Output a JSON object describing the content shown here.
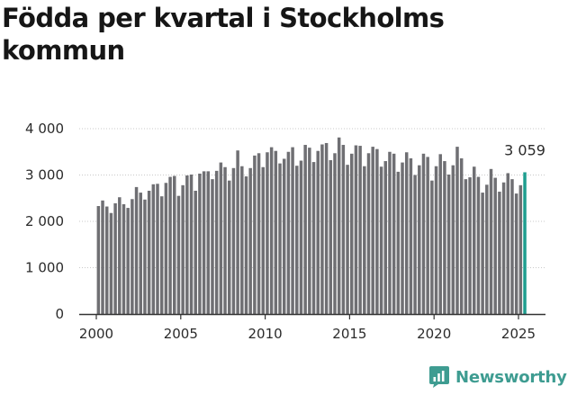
{
  "chart_data": {
    "type": "bar",
    "title": "Födda per kvartal i Stockholms kommun",
    "subtitle": "",
    "xlabel": "",
    "ylabel": "",
    "ylim": [
      0,
      4000
    ],
    "yticks": [
      0,
      1000,
      2000,
      3000,
      4000
    ],
    "ytick_labels": [
      "0",
      "1 000",
      "2 000",
      "3 000",
      "4 000"
    ],
    "xticks": [
      2000,
      2005,
      2010,
      2015,
      2020,
      2025
    ],
    "xtick_labels": [
      "2000",
      "2005",
      "2010",
      "2015",
      "2020",
      "2025"
    ],
    "grid": "horizontal",
    "legend": "none",
    "series": [
      {
        "start_year": 2000,
        "periods_per_year": 4,
        "values": [
          2330,
          2450,
          2320,
          2180,
          2390,
          2520,
          2370,
          2290,
          2480,
          2740,
          2620,
          2470,
          2660,
          2800,
          2810,
          2540,
          2830,
          2960,
          2980,
          2550,
          2780,
          2990,
          3010,
          2660,
          3030,
          3080,
          3080,
          2910,
          3090,
          3270,
          3170,
          2880,
          3150,
          3530,
          3190,
          2970,
          3150,
          3420,
          3470,
          3170,
          3490,
          3600,
          3520,
          3250,
          3350,
          3500,
          3600,
          3200,
          3310,
          3650,
          3590,
          3280,
          3520,
          3660,
          3690,
          3320,
          3470,
          3810,
          3650,
          3220,
          3460,
          3640,
          3630,
          3190,
          3470,
          3610,
          3560,
          3180,
          3300,
          3500,
          3460,
          3070,
          3270,
          3490,
          3360,
          3000,
          3210,
          3460,
          3390,
          2880,
          3190,
          3450,
          3300,
          3010,
          3210,
          3610,
          3360,
          2910,
          2950,
          3180,
          2960,
          2620,
          2790,
          3130,
          2940,
          2640,
          2840,
          3040,
          2910,
          2600,
          2780,
          3059
        ]
      }
    ],
    "highlight": {
      "index": 101,
      "color": "#1e9e8f"
    },
    "bar_color": "#6f6f73",
    "value_label": "3 059"
  },
  "branding": {
    "name": "Newsworthy",
    "color": "#3e9c91"
  }
}
